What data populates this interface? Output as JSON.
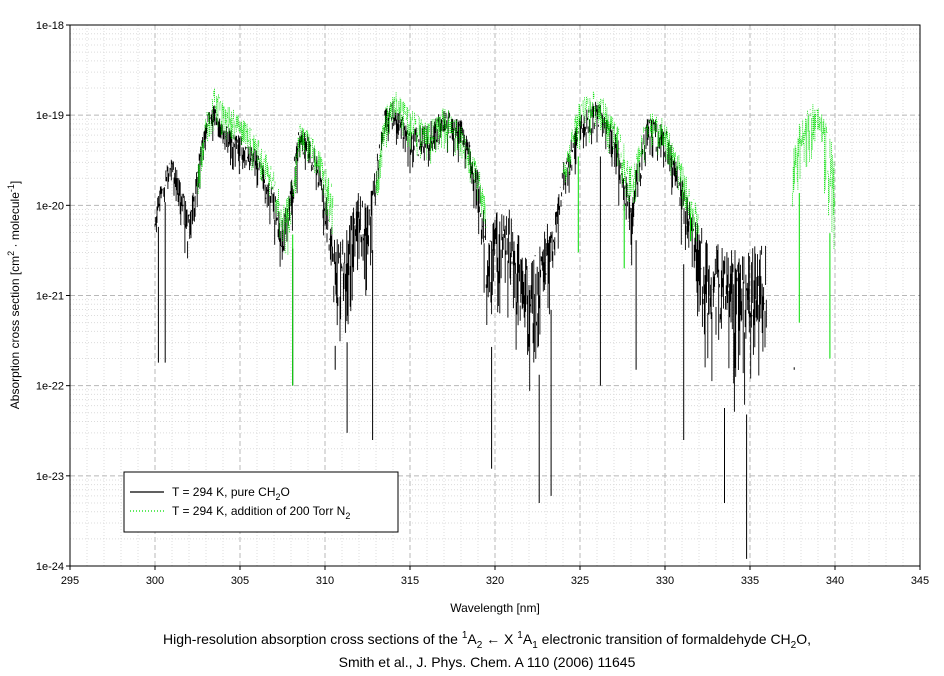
{
  "chart_data": {
    "type": "line",
    "xlabel": "Wavelength [nm]",
    "ylabel": "Absorption cross section [cm² · molecule⁻¹]",
    "ylabel_parts": {
      "pre": "Absorption cross section [cm",
      "sup1": "2",
      "mid": " · molecule",
      "sup2": "-1",
      "post": "]"
    },
    "xlim": [
      295,
      345
    ],
    "ylim": [
      1e-24,
      1e-18
    ],
    "yscale": "log",
    "grid": true,
    "legend_position": "bottom-left",
    "x_ticks": [
      "295",
      "300",
      "305",
      "310",
      "315",
      "320",
      "325",
      "330",
      "335",
      "340",
      "345"
    ],
    "y_ticks": [
      "1e-18",
      "1e-19",
      "1e-20",
      "1e-21",
      "1e-22",
      "1e-23",
      "1e-24"
    ],
    "series": [
      {
        "name": "T = 294 K, pure CH2O",
        "name_parts": {
          "pre": "T = 294 K, pure CH",
          "sub": "2",
          "post": "O"
        },
        "color": "#000000",
        "style": "solid",
        "envelope": {
          "x": [
            300.0,
            300.5,
            301.0,
            301.5,
            302.0,
            302.5,
            303.0,
            303.5,
            304.0,
            305.0,
            306.0,
            307.0,
            307.5,
            308.0,
            308.5,
            309.0,
            309.5,
            310.0,
            310.5,
            311.0,
            311.5,
            312.0,
            312.5,
            313.0,
            313.5,
            314.0,
            314.5,
            315.0,
            316.0,
            317.0,
            318.0,
            318.5,
            319.0,
            319.5,
            320.0,
            320.5,
            321.0,
            321.5,
            322.0,
            322.5,
            323.0,
            323.5,
            324.0,
            325.0,
            326.0,
            327.0,
            328.0,
            328.5,
            329.0,
            330.0,
            331.0,
            332.0,
            333.0,
            334.0,
            335.0,
            336.0
          ],
          "upper": [
            1e-20,
            2.5e-20,
            3.5e-20,
            2e-20,
            8e-21,
            3e-20,
            1e-19,
            1.3e-19,
            8e-20,
            6e-20,
            4e-20,
            1.5e-20,
            7e-21,
            2e-20,
            8e-20,
            6e-20,
            4e-20,
            1.5e-20,
            5e-21,
            4e-21,
            8e-21,
            1.5e-20,
            1e-20,
            3e-20,
            1.2e-19,
            1.5e-19,
            1e-19,
            7e-20,
            8e-20,
            1.2e-19,
            9e-20,
            5e-20,
            2.5e-20,
            6e-21,
            8e-21,
            1.2e-20,
            8e-21,
            4e-21,
            2.5e-21,
            3e-21,
            6e-21,
            8e-21,
            3e-20,
            1e-19,
            1.5e-19,
            8e-20,
            1.5e-20,
            4e-20,
            1e-19,
            8e-20,
            2e-20,
            6e-21,
            4e-21,
            3.5e-21,
            4e-21,
            4e-21
          ],
          "lower": [
            4e-21,
            1e-20,
            1.5e-20,
            5e-21,
            1.5e-21,
            8e-21,
            4e-20,
            5e-20,
            3e-20,
            2e-20,
            1.5e-20,
            3e-21,
            8e-22,
            2e-21,
            2.5e-20,
            2e-20,
            1.2e-20,
            3e-21,
            3e-22,
            2e-22,
            4e-22,
            1.5e-21,
            8e-22,
            8e-21,
            4e-20,
            5e-20,
            3e-20,
            2e-20,
            2e-20,
            3.5e-20,
            2.5e-20,
            1.2e-20,
            5e-21,
            3e-22,
            2.5e-22,
            1e-21,
            3e-22,
            1e-22,
            6e-23,
            1e-22,
            4e-22,
            1e-21,
            8e-21,
            3e-20,
            4e-20,
            2e-20,
            1.5e-21,
            8e-21,
            3e-20,
            2e-20,
            3e-21,
            1.5e-22,
            8e-23,
            4e-23,
            5e-23,
            1.5e-22
          ]
        },
        "spikes": [
          [
            300.2,
            1.8e-22
          ],
          [
            300.6,
            1.8e-22
          ],
          [
            308.1,
            1e-22
          ],
          [
            310.6,
            1.5e-22
          ],
          [
            311.3,
            3e-23
          ],
          [
            312.8,
            2.5e-23
          ],
          [
            319.8,
            1.2e-23
          ],
          [
            322.6,
            5e-24
          ],
          [
            323.3,
            6e-24
          ],
          [
            326.2,
            1e-22
          ],
          [
            328.3,
            1.5e-22
          ],
          [
            331.1,
            2.5e-23
          ],
          [
            333.5,
            5e-24
          ],
          [
            334.8,
            1.2e-24
          ],
          [
            337.6,
            1.6e-22
          ]
        ]
      },
      {
        "name": "T = 294 K, addition of 200 Torr N2",
        "name_parts": {
          "pre": "T = 294 K, addition of 200 Torr N",
          "sub": "2",
          "post": ""
        },
        "color": "#00dd00",
        "style": "dotted",
        "envelope": {
          "x": [
            302.5,
            303.0,
            303.5,
            304.0,
            305.0,
            306.0,
            307.0,
            307.5,
            308.0,
            308.5,
            309.0,
            310.0,
            310.5,
            313.0,
            313.5,
            314.0,
            315.0,
            316.0,
            317.0,
            318.0,
            319.0,
            319.5,
            324.0,
            325.0,
            326.0,
            327.0,
            328.0,
            328.5,
            329.0,
            330.0,
            331.0,
            332.0,
            337.5,
            338.0,
            339.0,
            340.0
          ],
          "upper": [
            3e-20,
            1e-19,
            2e-19,
            1.5e-19,
            1e-19,
            6e-20,
            2.5e-20,
            1e-20,
            1.5e-20,
            8e-20,
            7e-20,
            3e-20,
            1.5e-20,
            2e-20,
            1.2e-19,
            2e-19,
            1.2e-19,
            8e-20,
            1.3e-19,
            8e-20,
            3e-20,
            1e-20,
            3e-20,
            1.5e-19,
            2e-19,
            1e-19,
            3e-20,
            5e-20,
            1.2e-19,
            9e-20,
            3e-20,
            8e-21,
            5e-20,
            1e-19,
            1.5e-19,
            5e-20
          ],
          "lower": [
            8e-21,
            4e-20,
            6e-20,
            5e-20,
            3.5e-20,
            2e-20,
            8e-21,
            2e-21,
            3e-21,
            3e-20,
            2.5e-20,
            8e-21,
            3e-21,
            8e-21,
            4e-20,
            6e-20,
            4e-20,
            2.5e-20,
            4e-20,
            2.5e-20,
            8e-21,
            3e-21,
            1e-20,
            4e-20,
            5e-20,
            3e-20,
            5e-21,
            1.5e-20,
            4e-20,
            3e-20,
            8e-21,
            2e-21,
            3e-21,
            2e-20,
            4e-20,
            2e-21
          ]
        },
        "spikes": [
          [
            308.1,
            1e-22
          ],
          [
            324.9,
            3e-21
          ],
          [
            327.6,
            2e-21
          ],
          [
            331.5,
            8e-21
          ],
          [
            337.9,
            5e-22
          ],
          [
            339.7,
            2e-22
          ]
        ]
      }
    ]
  },
  "caption": {
    "line1": {
      "pre": "High-resolution absorption cross sections of the ",
      "sup1": "1",
      "A": "A",
      "sub1": "2",
      "arrow": " ← X ",
      "sup2": "1",
      "A2": "A",
      "sub2": "1",
      "post": " electronic transition of formaldehyde CH",
      "sub3": "2",
      "end": "O,"
    },
    "line2": "Smith et al., J. Phys. Chem. A 110 (2006) 11645"
  }
}
